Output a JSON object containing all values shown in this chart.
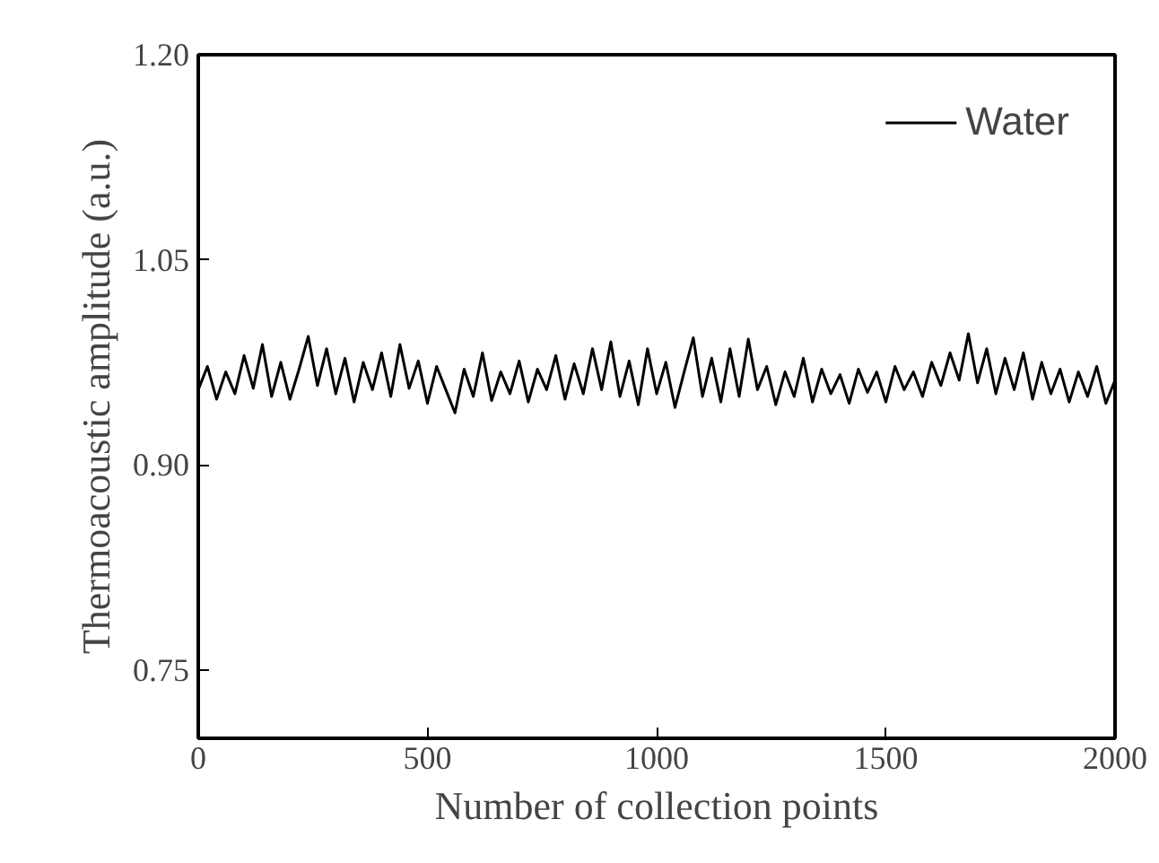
{
  "chart_data": {
    "type": "line",
    "xlabel": "Number of collection points",
    "ylabel": "Thermoacoustic amplitude (a.u.)",
    "x": [
      0,
      20,
      40,
      60,
      80,
      100,
      120,
      140,
      160,
      180,
      200,
      220,
      240,
      260,
      280,
      300,
      320,
      340,
      360,
      380,
      400,
      420,
      440,
      460,
      480,
      500,
      520,
      540,
      560,
      580,
      600,
      620,
      640,
      660,
      680,
      700,
      720,
      740,
      760,
      780,
      800,
      820,
      840,
      860,
      880,
      900,
      920,
      940,
      960,
      980,
      1000,
      1020,
      1040,
      1060,
      1080,
      1100,
      1120,
      1140,
      1160,
      1180,
      1200,
      1220,
      1240,
      1260,
      1280,
      1300,
      1320,
      1340,
      1360,
      1380,
      1400,
      1420,
      1440,
      1460,
      1480,
      1500,
      1520,
      1540,
      1560,
      1580,
      1600,
      1620,
      1640,
      1660,
      1680,
      1700,
      1720,
      1740,
      1760,
      1780,
      1800,
      1820,
      1840,
      1860,
      1880,
      1900,
      1920,
      1940,
      1960,
      1980,
      2000
    ],
    "series": [
      {
        "name": "Water",
        "color": "#000000",
        "values": [
          0.955,
          0.972,
          0.948,
          0.968,
          0.952,
          0.98,
          0.956,
          0.988,
          0.95,
          0.975,
          0.948,
          0.97,
          0.994,
          0.958,
          0.985,
          0.952,
          0.978,
          0.946,
          0.975,
          0.955,
          0.982,
          0.95,
          0.988,
          0.956,
          0.976,
          0.945,
          0.972,
          0.955,
          0.938,
          0.97,
          0.95,
          0.982,
          0.947,
          0.968,
          0.952,
          0.976,
          0.946,
          0.97,
          0.955,
          0.98,
          0.948,
          0.974,
          0.952,
          0.985,
          0.955,
          0.99,
          0.95,
          0.976,
          0.944,
          0.985,
          0.952,
          0.975,
          0.942,
          0.968,
          0.993,
          0.95,
          0.978,
          0.946,
          0.985,
          0.95,
          0.992,
          0.955,
          0.972,
          0.944,
          0.968,
          0.95,
          0.978,
          0.946,
          0.97,
          0.952,
          0.966,
          0.945,
          0.97,
          0.953,
          0.968,
          0.946,
          0.972,
          0.955,
          0.968,
          0.95,
          0.975,
          0.958,
          0.982,
          0.962,
          0.996,
          0.96,
          0.985,
          0.952,
          0.978,
          0.955,
          0.982,
          0.948,
          0.975,
          0.952,
          0.97,
          0.946,
          0.968,
          0.95,
          0.972,
          0.945,
          0.962
        ]
      }
    ],
    "xlim": [
      0,
      2000
    ],
    "xticks": [
      0,
      500,
      1000,
      1500,
      2000
    ],
    "ylim": [
      0.7,
      1.2
    ],
    "yticks": [
      {
        "value": 0.75,
        "label": "0.75"
      },
      {
        "value": 0.9,
        "label": "0.90"
      },
      {
        "value": 1.05,
        "label": "1.05"
      },
      {
        "value": 1.2,
        "label": "1.20"
      }
    ],
    "grid": false,
    "legend": "top right",
    "marker": "none",
    "line_style": "solid"
  }
}
